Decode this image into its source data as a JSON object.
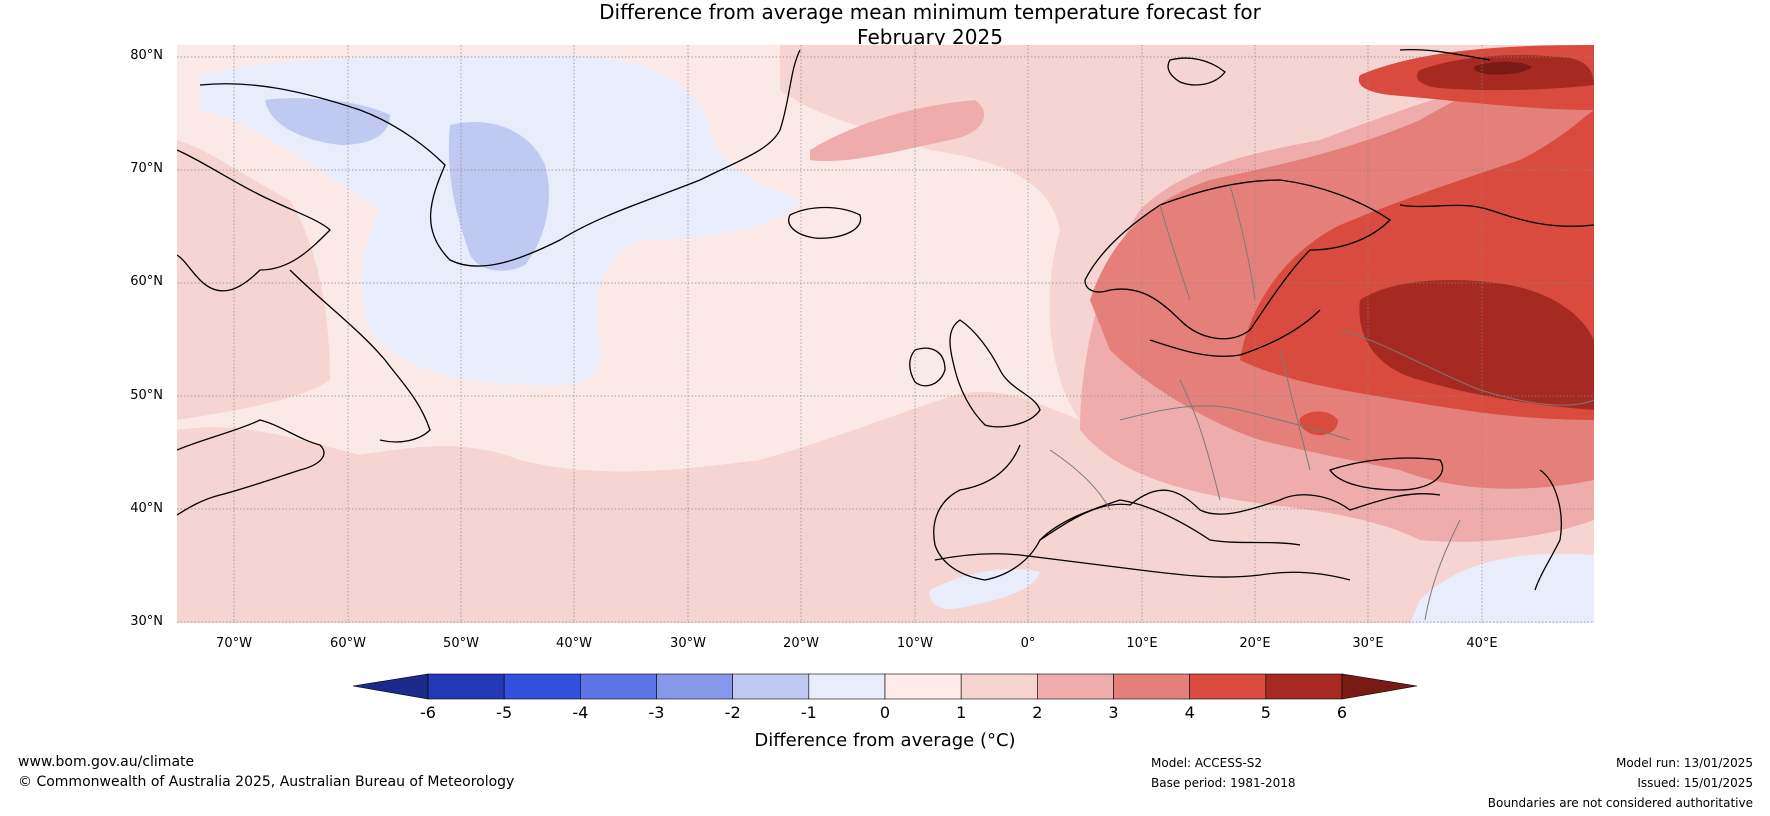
{
  "title": {
    "line1": "Difference from average mean minimum temperature forecast for",
    "line2": "February 2025"
  },
  "map": {
    "region": "North Atlantic and Europe",
    "latitude_labels": [
      "80°N",
      "70°N",
      "60°N",
      "50°N",
      "40°N",
      "30°N"
    ],
    "longitude_labels": [
      "70°W",
      "60°W",
      "50°W",
      "40°W",
      "30°W",
      "20°W",
      "10°W",
      "0°",
      "10°E",
      "20°E",
      "30°E",
      "40°E"
    ],
    "colors": {
      "ocean_base": "#fbe9e7",
      "band_m1_0": "#e8ecfb",
      "band_m2_m1": "#c0c9f2",
      "band_0_1": "#fdecea",
      "band_1_2": "#f5d4d2",
      "band_2_3": "#eeadaa",
      "band_3_4": "#e57f79",
      "band_4_5": "#d84b3e",
      "band_5_6": "#a72a22",
      "band_gt6": "#7a1a14"
    }
  },
  "colorbar": {
    "ticks": [
      "-6",
      "-5",
      "-4",
      "-3",
      "-2",
      "-1",
      "0",
      "1",
      "2",
      "3",
      "4",
      "5",
      "6"
    ],
    "colors": [
      "#1b2b8c",
      "#2439b5",
      "#3251de",
      "#5c74e6",
      "#8598ea",
      "#c0c9f2",
      "#e8ecfb",
      "#fdecea",
      "#f5d4d2",
      "#eeadaa",
      "#e57f79",
      "#d84b3e",
      "#a72a22",
      "#7a1a14"
    ],
    "label": "Difference from average (°C)"
  },
  "footer": {
    "website": "www.bom.gov.au/climate",
    "copyright": "© Commonwealth of Australia 2025, Australian Bureau of Meteorology",
    "model": "Model: ACCESS-S2",
    "base_period": "Base period: 1981-2018",
    "model_run": "Model run: 13/01/2025",
    "issued": "Issued: 15/01/2025",
    "disclaimer": "Boundaries are not considered authoritative"
  }
}
